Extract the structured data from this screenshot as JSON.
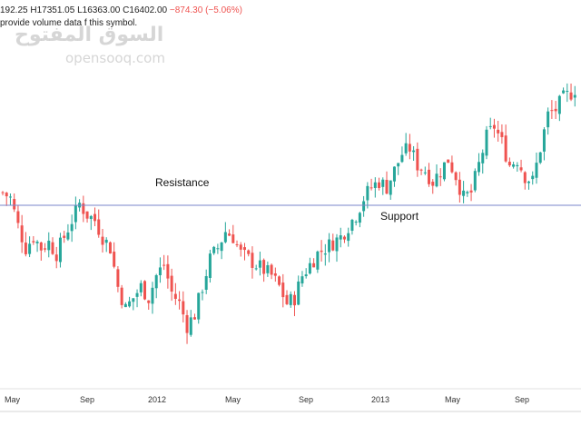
{
  "header": {
    "ohlc_prefix": "192.25",
    "high": "H17351.05",
    "low": "L16363.00",
    "close": "C16402.00",
    "change": "−874.30 (−5.06%)",
    "notice": "provide volume data f   this symbol."
  },
  "watermark": {
    "arabic": "السوق المفتوح",
    "latin": "opensooq.com"
  },
  "chart_data": {
    "type": "candlestick",
    "title": "",
    "xlabel": "",
    "ylabel": "",
    "x_ticks": [
      "May",
      "Sep",
      "2012",
      "May",
      "Sep",
      "2013",
      "May",
      "Sep"
    ],
    "grid": false,
    "colors": {
      "up": "#26a69a",
      "down": "#ef5350",
      "level_line": "#7986cb"
    },
    "level_line": {
      "label_resistance": "Resistance",
      "label_support": "Support"
    },
    "close_path": [
      [
        0,
        60
      ],
      [
        2,
        58
      ],
      [
        4,
        48
      ],
      [
        6,
        40
      ],
      [
        8,
        44
      ],
      [
        10,
        40
      ],
      [
        12,
        42
      ],
      [
        14,
        38
      ],
      [
        16,
        44
      ],
      [
        18,
        50
      ],
      [
        20,
        56
      ],
      [
        22,
        52
      ],
      [
        24,
        50
      ],
      [
        26,
        44
      ],
      [
        28,
        40
      ],
      [
        30,
        26
      ],
      [
        32,
        18
      ],
      [
        34,
        22
      ],
      [
        36,
        26
      ],
      [
        38,
        22
      ],
      [
        40,
        30
      ],
      [
        42,
        34
      ],
      [
        44,
        24
      ],
      [
        46,
        20
      ],
      [
        48,
        12
      ],
      [
        50,
        16
      ],
      [
        52,
        26
      ],
      [
        54,
        36
      ],
      [
        56,
        40
      ],
      [
        58,
        46
      ],
      [
        60,
        44
      ],
      [
        62,
        38
      ],
      [
        64,
        36
      ],
      [
        66,
        34
      ],
      [
        68,
        32
      ],
      [
        70,
        30
      ],
      [
        72,
        26
      ],
      [
        74,
        20
      ],
      [
        76,
        22
      ],
      [
        78,
        30
      ],
      [
        80,
        34
      ],
      [
        82,
        38
      ],
      [
        84,
        40
      ],
      [
        86,
        42
      ],
      [
        88,
        44
      ],
      [
        90,
        48
      ],
      [
        92,
        52
      ],
      [
        94,
        58
      ],
      [
        96,
        62
      ],
      [
        98,
        64
      ],
      [
        100,
        62
      ],
      [
        102,
        68
      ],
      [
        104,
        74
      ],
      [
        106,
        76
      ],
      [
        108,
        70
      ],
      [
        110,
        68
      ],
      [
        112,
        64
      ],
      [
        114,
        68
      ],
      [
        116,
        72
      ],
      [
        118,
        66
      ],
      [
        120,
        58
      ],
      [
        122,
        60
      ],
      [
        124,
        70
      ],
      [
        126,
        80
      ],
      [
        128,
        84
      ],
      [
        130,
        78
      ],
      [
        132,
        70
      ],
      [
        134,
        72
      ],
      [
        136,
        66
      ],
      [
        138,
        64
      ],
      [
        140,
        76
      ],
      [
        142,
        88
      ],
      [
        144,
        90
      ],
      [
        146,
        94
      ],
      [
        148,
        96
      ],
      [
        150,
        99
      ]
    ]
  }
}
